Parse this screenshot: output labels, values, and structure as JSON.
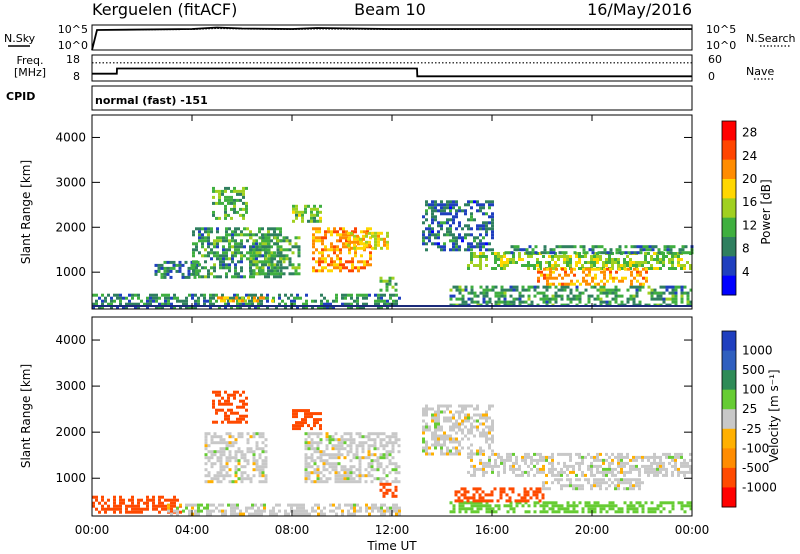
{
  "header": {
    "station": "Kerguelen (fitACF)",
    "beam": "Beam 10",
    "date": "16/May/2016"
  },
  "noise_panel": {
    "left_label": "N.Sky",
    "right_label": "N.Search",
    "left_ticks": [
      "10^5",
      "10^0"
    ],
    "right_ticks": [
      "10^5",
      "10^0"
    ]
  },
  "freq_panel": {
    "left_label_1": "Freq.",
    "left_label_2": "[MHz]",
    "right_label": "Nave",
    "left_ticks": [
      "18",
      "8"
    ],
    "right_ticks": [
      "60",
      "0"
    ]
  },
  "cpid": {
    "label": "CPID",
    "mode": "normal (fast) -151"
  },
  "colors": {
    "power_scale": [
      "#0000ff",
      "#1f3fbf",
      "#2f7f5f",
      "#3faf3f",
      "#a0d020",
      "#ffd700",
      "#ff8c00",
      "#ff4500",
      "#ff0000"
    ],
    "velocity_scale": [
      "#ff0000",
      "#ff4a00",
      "#ff8c00",
      "#ffb000",
      "#c8c8c8",
      "#66cc33",
      "#2e8b57",
      "#2f5fbf",
      "#1f3fbf"
    ]
  },
  "chart_data": [
    {
      "type": "line",
      "panel": "noise",
      "x": [
        "00:00",
        "00:12",
        "04:00",
        "05:00",
        "06:00",
        "08:00",
        "09:00",
        "12:00",
        "16:00",
        "20:00",
        "24:00"
      ],
      "series": [
        {
          "name": "N.Sky",
          "values": [
            0,
            40,
            42,
            45,
            43,
            42,
            44,
            42,
            42,
            42,
            42
          ]
        },
        {
          "name": "N.Search",
          "values": [
            0,
            40,
            41,
            43,
            42,
            41,
            42,
            41,
            41,
            41,
            41
          ]
        }
      ]
    },
    {
      "type": "line",
      "panel": "frequency",
      "x_hours": [
        0,
        0.99,
        1.0,
        13.0,
        13.01,
        24
      ],
      "series": [
        {
          "name": "Freq.",
          "values": [
            10.8,
            10.8,
            12.8,
            12.8,
            9.8,
            9.8
          ]
        },
        {
          "name": "Nave",
          "values": [
            42,
            42,
            42,
            42,
            42,
            42
          ]
        }
      ]
    },
    {
      "type": "heatmap",
      "panel": "power",
      "xlabel": "Time UT",
      "ylabel": "Slant Range [km]",
      "xticks": [
        "00:00",
        "04:00",
        "08:00",
        "12:00",
        "16:00",
        "20:00",
        "00:00"
      ],
      "yticks": [
        1000,
        2000,
        3000,
        4000
      ],
      "xlim": [
        0,
        24
      ],
      "ylim": [
        180,
        4500
      ],
      "colorbar_label": "Power [dB]",
      "colorbar_ticks": [
        4,
        8,
        12,
        16,
        20,
        24,
        28
      ],
      "colorbar_range": [
        0,
        30
      ],
      "features": [
        {
          "t0": 0.0,
          "t1": 12.3,
          "r0": 250,
          "r1": 520,
          "level": 9
        },
        {
          "t0": 5.0,
          "t1": 7.3,
          "r0": 370,
          "r1": 460,
          "level": 20
        },
        {
          "t0": 2.5,
          "t1": 4.2,
          "r0": 850,
          "r1": 1250,
          "level": 8
        },
        {
          "t0": 4.0,
          "t1": 7.5,
          "r0": 900,
          "r1": 2000,
          "level": 10
        },
        {
          "t0": 4.8,
          "t1": 6.2,
          "r0": 2200,
          "r1": 2900,
          "level": 12
        },
        {
          "t0": 6.3,
          "t1": 8.3,
          "r0": 950,
          "r1": 1800,
          "level": 11
        },
        {
          "t0": 8.0,
          "t1": 9.2,
          "r0": 2100,
          "r1": 2500,
          "level": 13
        },
        {
          "t0": 8.8,
          "t1": 11.2,
          "r0": 1000,
          "r1": 2000,
          "level": 21
        },
        {
          "t0": 10.2,
          "t1": 11.8,
          "r0": 1500,
          "r1": 1900,
          "level": 18
        },
        {
          "t0": 11.5,
          "t1": 12.2,
          "r0": 600,
          "r1": 900,
          "level": 12
        },
        {
          "t0": 13.2,
          "t1": 16.0,
          "r0": 1500,
          "r1": 2600,
          "level": 7
        },
        {
          "t0": 14.3,
          "t1": 24.0,
          "r0": 250,
          "r1": 700,
          "level": 10
        },
        {
          "t0": 15.0,
          "t1": 24.0,
          "r0": 1050,
          "r1": 1450,
          "level": 14
        },
        {
          "t0": 17.8,
          "t1": 22.2,
          "r0": 750,
          "r1": 1100,
          "level": 21
        },
        {
          "t0": 16.5,
          "t1": 24.0,
          "r0": 1400,
          "r1": 1600,
          "level": 9
        }
      ]
    },
    {
      "type": "heatmap",
      "panel": "velocity",
      "xlabel": "Time UT",
      "ylabel": "Slant Range [km]",
      "xticks": [
        "00:00",
        "04:00",
        "08:00",
        "12:00",
        "16:00",
        "20:00",
        "00:00"
      ],
      "yticks": [
        1000,
        2000,
        3000,
        4000
      ],
      "xlim": [
        0,
        24
      ],
      "ylim": [
        180,
        4500
      ],
      "colorbar_label": "Velocity [m s⁻¹]",
      "colorbar_ticks": [
        "1000",
        "500",
        "100",
        "25",
        "-25",
        "-100",
        "-500",
        "-1000"
      ],
      "features": [
        {
          "t0": 0.0,
          "t1": 3.5,
          "r0": 250,
          "r1": 620,
          "level": -150
        },
        {
          "t0": 3.0,
          "t1": 12.3,
          "r0": 250,
          "r1": 450,
          "level": 0
        },
        {
          "t0": 4.2,
          "t1": 4.8,
          "r0": 300,
          "r1": 450,
          "level": 60
        },
        {
          "t0": 4.5,
          "t1": 7.0,
          "r0": 900,
          "r1": 2000,
          "level": 0
        },
        {
          "t0": 4.8,
          "t1": 6.2,
          "r0": 2200,
          "r1": 2900,
          "level": -150
        },
        {
          "t0": 8.0,
          "t1": 9.2,
          "r0": 2100,
          "r1": 2500,
          "level": -150
        },
        {
          "t0": 8.5,
          "t1": 12.3,
          "r0": 900,
          "r1": 2000,
          "level": 0
        },
        {
          "t0": 11.5,
          "t1": 12.2,
          "r0": 600,
          "r1": 900,
          "level": -150
        },
        {
          "t0": 13.2,
          "t1": 16.0,
          "r0": 1500,
          "r1": 2600,
          "level": 0
        },
        {
          "t0": 14.3,
          "t1": 24.0,
          "r0": 250,
          "r1": 500,
          "level": 60
        },
        {
          "t0": 14.5,
          "t1": 18.0,
          "r0": 500,
          "r1": 800,
          "level": -150
        },
        {
          "t0": 15.0,
          "t1": 24.0,
          "r0": 1050,
          "r1": 1550,
          "level": 0
        },
        {
          "t0": 18.0,
          "t1": 22.0,
          "r0": 750,
          "r1": 1000,
          "level": 0
        }
      ]
    }
  ]
}
